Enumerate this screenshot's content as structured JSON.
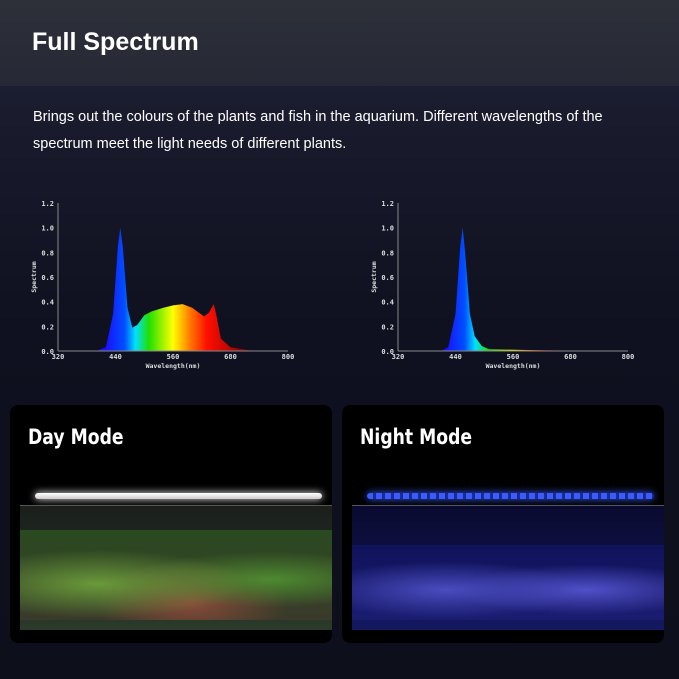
{
  "header": {
    "title": "Full Spectrum"
  },
  "description": "Brings out the colours of the plants and fish in the aquarium.  Different wavelengths of the spectrum meet the light needs of different plants.",
  "chart_data": [
    {
      "type": "area",
      "xlabel": "Wavelength(nm)",
      "ylabel": "Spectrum",
      "xlim": [
        320,
        800
      ],
      "ylim": [
        0,
        1.2
      ],
      "xticks": [
        "320",
        "440",
        "560",
        "680",
        "800"
      ],
      "yticks": [
        "0.0",
        "0.2",
        "0.4",
        "0.6",
        "0.8",
        "1.0",
        "1.2"
      ],
      "x": [
        400,
        420,
        435,
        445,
        450,
        455,
        465,
        475,
        485,
        500,
        515,
        540,
        560,
        580,
        600,
        625,
        635,
        645,
        650,
        660,
        680,
        720,
        800
      ],
      "y": [
        0,
        0.03,
        0.3,
        0.85,
        1.0,
        0.85,
        0.35,
        0.19,
        0.21,
        0.29,
        0.32,
        0.35,
        0.37,
        0.38,
        0.35,
        0.28,
        0.31,
        0.38,
        0.3,
        0.1,
        0.03,
        0.005,
        0
      ]
    },
    {
      "type": "area",
      "xlabel": "Wavelength(nm)",
      "ylabel": "Spectrum",
      "xlim": [
        320,
        800
      ],
      "ylim": [
        0,
        1.2
      ],
      "xticks": [
        "320",
        "440",
        "560",
        "680",
        "800"
      ],
      "yticks": [
        "0.0",
        "0.2",
        "0.4",
        "0.6",
        "0.8",
        "1.0",
        "1.2"
      ],
      "x": [
        410,
        425,
        440,
        450,
        455,
        460,
        470,
        480,
        495,
        510,
        560,
        640,
        800
      ],
      "y": [
        0,
        0.03,
        0.3,
        0.85,
        1.0,
        0.8,
        0.3,
        0.12,
        0.04,
        0.015,
        0.01,
        0.005,
        0
      ]
    }
  ],
  "panels": [
    {
      "label": "Day Mode"
    },
    {
      "label": "Night Mode"
    }
  ]
}
